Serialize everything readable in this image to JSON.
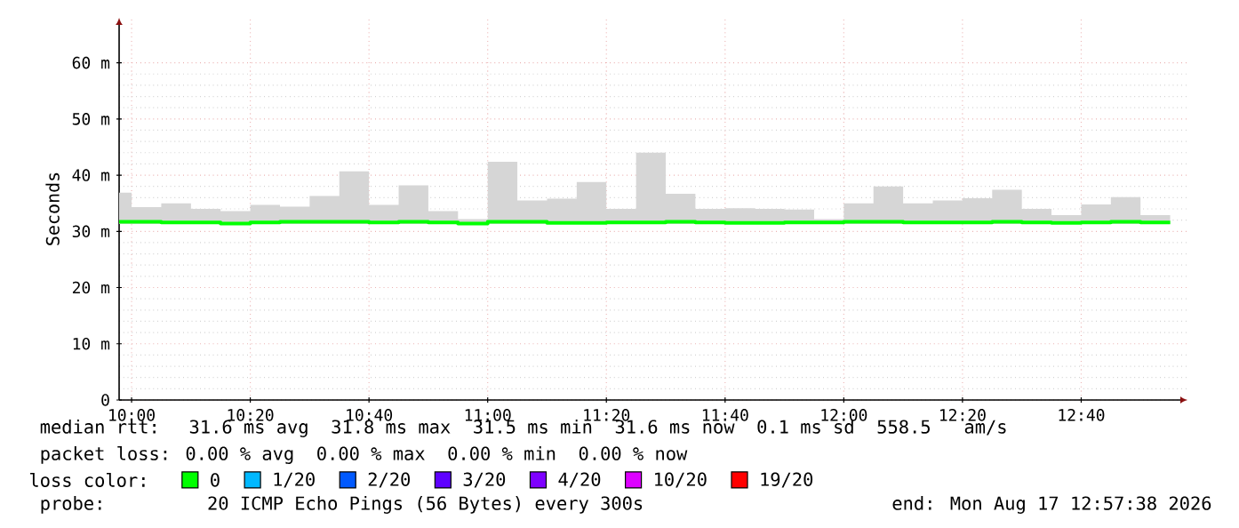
{
  "chart_data": {
    "type": "step",
    "ylabel": "Seconds",
    "x": [
      9.965,
      10,
      10.0833,
      10.1667,
      10.25,
      10.3333,
      10.4167,
      10.5,
      10.5833,
      10.6667,
      10.75,
      10.8333,
      10.9167,
      11,
      11.0833,
      11.1667,
      11.25,
      11.3333,
      11.4167,
      11.5,
      11.5833,
      11.6667,
      11.75,
      11.8333,
      11.9167,
      12,
      12.0833,
      12.1667,
      12.25,
      12.3333,
      12.4167,
      12.5,
      12.5833,
      12.6667,
      12.75,
      12.8333,
      12.9167
    ],
    "xlim": [
      9.965,
      12.965
    ],
    "xticks": [
      {
        "value": 10,
        "label": "10:00"
      },
      {
        "value": 10.3333,
        "label": "10:20"
      },
      {
        "value": 10.6667,
        "label": "10:40"
      },
      {
        "value": 11,
        "label": "11:00"
      },
      {
        "value": 11.3333,
        "label": "11:20"
      },
      {
        "value": 11.6667,
        "label": "11:40"
      },
      {
        "value": 12,
        "label": "12:00"
      },
      {
        "value": 12.3333,
        "label": "12:20"
      },
      {
        "value": 12.6667,
        "label": "12:40"
      }
    ],
    "ylim": [
      0,
      68
    ],
    "yticks": [
      {
        "value": 0,
        "label": "0"
      },
      {
        "value": 10,
        "label": "10 m"
      },
      {
        "value": 20,
        "label": "20 m"
      },
      {
        "value": 30,
        "label": "30 m"
      },
      {
        "value": 40,
        "label": "40 m"
      },
      {
        "value": 50,
        "label": "50 m"
      },
      {
        "value": 60,
        "label": "60 m"
      }
    ],
    "grid": true,
    "legend": "bottom",
    "legend_title": "loss color:",
    "series": [
      {
        "name": "0",
        "color": "#00ff00",
        "values": [
          31.7,
          31.7,
          31.6,
          31.6,
          31.4,
          31.6,
          31.7,
          31.7,
          31.7,
          31.6,
          31.7,
          31.6,
          31.4,
          31.7,
          31.7,
          31.5,
          31.5,
          31.6,
          31.6,
          31.7,
          31.6,
          31.5,
          31.5,
          31.6,
          31.6,
          31.7,
          31.7,
          31.6,
          31.6,
          31.6,
          31.7,
          31.6,
          31.5,
          31.6,
          31.7,
          31.6,
          31.6
        ],
        "lower": [
          31.3,
          31.3,
          31.3,
          31.3,
          31.3,
          31.3,
          31.3,
          31.3,
          31.3,
          31.3,
          31.3,
          31.3,
          31.3,
          31.3,
          31.3,
          31.3,
          31.3,
          31.3,
          31.3,
          31.3,
          31.3,
          31.3,
          31.3,
          31.3,
          31.3,
          31.3,
          31.3,
          31.3,
          31.3,
          31.3,
          31.3,
          31.3,
          31.3,
          31.3,
          31.3,
          31.3,
          31.3
        ],
        "upper": [
          36.9,
          34.3,
          35.0,
          34.0,
          33.6,
          34.7,
          34.4,
          36.3,
          40.7,
          34.7,
          38.2,
          33.6,
          32.2,
          42.4,
          35.5,
          35.8,
          38.8,
          34.0,
          44.0,
          36.7,
          34.0,
          34.1,
          34.0,
          33.9,
          32.2,
          35.0,
          38.0,
          35.0,
          35.5,
          35.9,
          37.4,
          34.0,
          32.9,
          34.8,
          36.1,
          32.9,
          32.9
        ]
      },
      {
        "name": "1/20",
        "color": "#00b8ff",
        "values": [
          null,
          null,
          null,
          null,
          null,
          null,
          null,
          null,
          null,
          null,
          null,
          null,
          null,
          null,
          null,
          null,
          null,
          null,
          null,
          null,
          null,
          null,
          null,
          null,
          null,
          null,
          null,
          null,
          null,
          null,
          null,
          null,
          null,
          null,
          null,
          null,
          null
        ]
      },
      {
        "name": "2/20",
        "color": "#0059ff",
        "values": [
          null,
          null,
          null,
          null,
          null,
          null,
          null,
          null,
          null,
          null,
          null,
          null,
          null,
          null,
          null,
          null,
          null,
          null,
          null,
          null,
          null,
          null,
          null,
          null,
          null,
          null,
          null,
          null,
          null,
          null,
          null,
          null,
          null,
          null,
          null,
          null,
          null
        ]
      },
      {
        "name": "3/20",
        "color": "#5e00ff",
        "values": [
          null,
          null,
          null,
          null,
          null,
          null,
          null,
          null,
          null,
          null,
          null,
          null,
          null,
          null,
          null,
          null,
          null,
          null,
          null,
          null,
          null,
          null,
          null,
          null,
          null,
          null,
          null,
          null,
          null,
          null,
          null,
          null,
          null,
          null,
          null,
          null,
          null
        ]
      },
      {
        "name": "4/20",
        "color": "#7e00ff",
        "values": [
          null,
          null,
          null,
          null,
          null,
          null,
          null,
          null,
          null,
          null,
          null,
          null,
          null,
          null,
          null,
          null,
          null,
          null,
          null,
          null,
          null,
          null,
          null,
          null,
          null,
          null,
          null,
          null,
          null,
          null,
          null,
          null,
          null,
          null,
          null,
          null,
          null
        ]
      },
      {
        "name": "10/20",
        "color": "#dd00ff",
        "values": [
          null,
          null,
          null,
          null,
          null,
          null,
          null,
          null,
          null,
          null,
          null,
          null,
          null,
          null,
          null,
          null,
          null,
          null,
          null,
          null,
          null,
          null,
          null,
          null,
          null,
          null,
          null,
          null,
          null,
          null,
          null,
          null,
          null,
          null,
          null,
          null,
          null
        ]
      },
      {
        "name": "19/20",
        "color": "#ff0000",
        "values": [
          null,
          null,
          null,
          null,
          null,
          null,
          null,
          null,
          null,
          null,
          null,
          null,
          null,
          null,
          null,
          null,
          null,
          null,
          null,
          null,
          null,
          null,
          null,
          null,
          null,
          null,
          null,
          null,
          null,
          null,
          null,
          null,
          null,
          null,
          null,
          null,
          null
        ]
      }
    ],
    "annotations": [
      "median rtt:  31.6 ms avg  31.8 ms max  31.5 ms min  31.6 ms now  0.1 ms sd  558.5   am/s",
      "packet loss: 0.00 % avg  0.00 % max  0.00 % min  0.00 % now",
      "probe:       20 ICMP Echo Pings (56 Bytes) every 300s",
      "end: Mon Aug 17 12:57:38 2026"
    ]
  }
}
